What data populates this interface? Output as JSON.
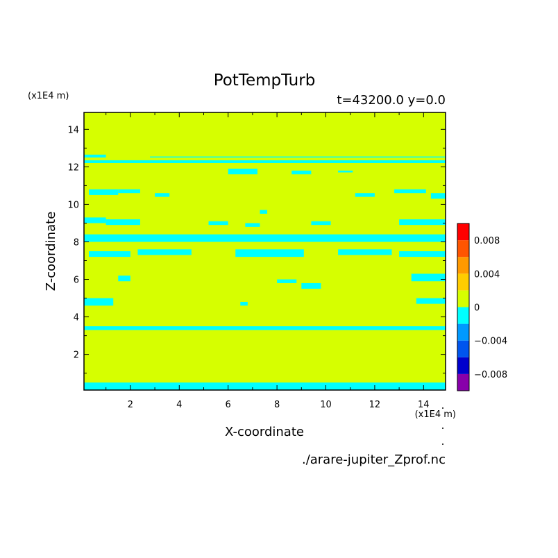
{
  "chart_data": {
    "type": "heatmap",
    "title": "PotTempTurb",
    "subtitle": "t=43200.0 y=0.0",
    "xlabel": "X-coordinate",
    "ylabel": "Z-coordinate",
    "x_unit": "(x1E4 m)",
    "y_unit": "(x1E4 m)",
    "source_file": "./arare-jupiter_Zprof.nc",
    "xlim": [
      0.1,
      14.9
    ],
    "ylim": [
      0.1,
      14.9
    ],
    "xticks": [
      2,
      4,
      6,
      8,
      10,
      12,
      14
    ],
    "yticks": [
      2,
      4,
      6,
      8,
      10,
      12,
      14
    ],
    "background_color": "#d6ff00",
    "colorbar": {
      "levels": [
        -0.01,
        -0.008,
        -0.006,
        -0.004,
        -0.002,
        0,
        0.002,
        0.004,
        0.006,
        0.008,
        0.01
      ],
      "colors": [
        "#8800aa",
        "#0000cc",
        "#0055ee",
        "#0099ff",
        "#00ffff",
        "#d6ff00",
        "#ffcc00",
        "#ff9900",
        "#ff5500",
        "#ff0000",
        "#ffaaaa"
      ],
      "tick_labels": [
        {
          "value": 0.008,
          "label": "0.008"
        },
        {
          "value": 0.004,
          "label": "0.004"
        },
        {
          "value": 0,
          "label": "0"
        },
        {
          "value": -0.004,
          "label": "−0.004"
        },
        {
          "value": -0.008,
          "label": "−0.008"
        }
      ]
    },
    "negative_regions": [
      {
        "x": [
          0.1,
          14.9
        ],
        "z": [
          12.2,
          12.35
        ]
      },
      {
        "x": [
          0.1,
          1.0
        ],
        "z": [
          12.5,
          12.65
        ]
      },
      {
        "x": [
          2.8,
          14.9
        ],
        "z": [
          12.5,
          12.55
        ]
      },
      {
        "x": [
          0.3,
          1.5
        ],
        "z": [
          10.5,
          10.8
        ]
      },
      {
        "x": [
          1.5,
          2.4
        ],
        "z": [
          10.6,
          10.8
        ]
      },
      {
        "x": [
          3.0,
          3.6
        ],
        "z": [
          10.4,
          10.6
        ]
      },
      {
        "x": [
          6.0,
          7.2
        ],
        "z": [
          11.6,
          11.9
        ]
      },
      {
        "x": [
          8.6,
          9.4
        ],
        "z": [
          11.6,
          11.8
        ]
      },
      {
        "x": [
          10.5,
          11.1
        ],
        "z": [
          11.7,
          11.8
        ]
      },
      {
        "x": [
          11.2,
          12.0
        ],
        "z": [
          10.4,
          10.6
        ]
      },
      {
        "x": [
          12.8,
          14.1
        ],
        "z": [
          10.6,
          10.8
        ]
      },
      {
        "x": [
          14.3,
          14.9
        ],
        "z": [
          10.3,
          10.6
        ]
      },
      {
        "x": [
          7.3,
          7.6
        ],
        "z": [
          9.5,
          9.7
        ]
      },
      {
        "x": [
          0.1,
          1.0
        ],
        "z": [
          9.0,
          9.3
        ]
      },
      {
        "x": [
          1.0,
          2.4
        ],
        "z": [
          8.9,
          9.2
        ]
      },
      {
        "x": [
          5.2,
          6.0
        ],
        "z": [
          8.9,
          9.1
        ]
      },
      {
        "x": [
          6.7,
          7.3
        ],
        "z": [
          8.8,
          9.0
        ]
      },
      {
        "x": [
          9.4,
          10.2
        ],
        "z": [
          8.9,
          9.1
        ]
      },
      {
        "x": [
          13.0,
          14.9
        ],
        "z": [
          8.9,
          9.2
        ]
      },
      {
        "x": [
          0.1,
          14.9
        ],
        "z": [
          8.0,
          8.4
        ]
      },
      {
        "x": [
          0.3,
          2.0
        ],
        "z": [
          7.2,
          7.5
        ]
      },
      {
        "x": [
          2.3,
          4.5
        ],
        "z": [
          7.3,
          7.6
        ]
      },
      {
        "x": [
          6.3,
          9.1
        ],
        "z": [
          7.2,
          7.6
        ]
      },
      {
        "x": [
          10.5,
          12.7
        ],
        "z": [
          7.3,
          7.6
        ]
      },
      {
        "x": [
          13.0,
          14.9
        ],
        "z": [
          7.2,
          7.5
        ]
      },
      {
        "x": [
          1.5,
          2.0
        ],
        "z": [
          5.9,
          6.2
        ]
      },
      {
        "x": [
          8.0,
          8.8
        ],
        "z": [
          5.8,
          6.0
        ]
      },
      {
        "x": [
          9.0,
          9.8
        ],
        "z": [
          5.5,
          5.8
        ]
      },
      {
        "x": [
          13.5,
          14.9
        ],
        "z": [
          5.9,
          6.3
        ]
      },
      {
        "x": [
          0.1,
          1.3
        ],
        "z": [
          4.6,
          5.0
        ]
      },
      {
        "x": [
          6.5,
          6.8
        ],
        "z": [
          4.6,
          4.8
        ]
      },
      {
        "x": [
          13.7,
          14.9
        ],
        "z": [
          4.7,
          5.0
        ]
      },
      {
        "x": [
          0.1,
          14.9
        ],
        "z": [
          3.3,
          3.5
        ]
      },
      {
        "x": [
          0.1,
          14.9
        ],
        "z": [
          0.1,
          0.5
        ]
      }
    ]
  }
}
